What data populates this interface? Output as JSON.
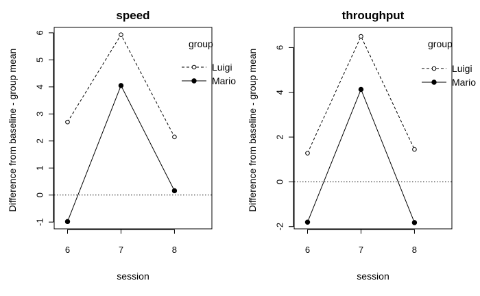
{
  "chart_data": [
    {
      "type": "line",
      "title": "speed",
      "xlabel": "session",
      "ylabel": "Difference from baseline - group mean",
      "x": [
        6,
        7,
        8
      ],
      "xticks": [
        "6",
        "7",
        "8"
      ],
      "xlim": [
        5.75,
        8.7
      ],
      "ylim": [
        -1.25,
        6.2
      ],
      "yticks": [
        -1,
        0,
        1,
        2,
        3,
        4,
        5,
        6
      ],
      "yticklabels": [
        "-1",
        "0",
        "1",
        "2",
        "3",
        "4",
        "5",
        "6"
      ],
      "reference_line": 0,
      "legend_title": "group",
      "legend_position": "top-right",
      "series": [
        {
          "name": "Luigi",
          "values": [
            2.7,
            5.93,
            2.15
          ],
          "line": "dashed",
          "marker": "open-circle",
          "color": "#000000"
        },
        {
          "name": "Mario",
          "values": [
            -0.98,
            4.05,
            0.16
          ],
          "line": "solid",
          "marker": "filled-circle",
          "color": "#000000"
        }
      ]
    },
    {
      "type": "line",
      "title": "throughput",
      "xlabel": "session",
      "ylabel": "Difference from baseline - group mean",
      "x": [
        6,
        7,
        8
      ],
      "xticks": [
        "6",
        "7",
        "8"
      ],
      "xlim": [
        5.75,
        8.7
      ],
      "ylim": [
        -2.1,
        6.9
      ],
      "yticks": [
        -2,
        0,
        2,
        4,
        6
      ],
      "yticklabels": [
        "-2",
        "0",
        "2",
        "4",
        "6"
      ],
      "reference_line": 0,
      "legend_title": "group",
      "legend_position": "top-right",
      "series": [
        {
          "name": "Luigi",
          "values": [
            1.28,
            6.5,
            1.45
          ],
          "line": "dashed",
          "marker": "open-circle",
          "color": "#000000"
        },
        {
          "name": "Mario",
          "values": [
            -1.8,
            4.13,
            -1.82
          ],
          "line": "solid",
          "marker": "filled-circle",
          "color": "#000000"
        }
      ]
    }
  ]
}
